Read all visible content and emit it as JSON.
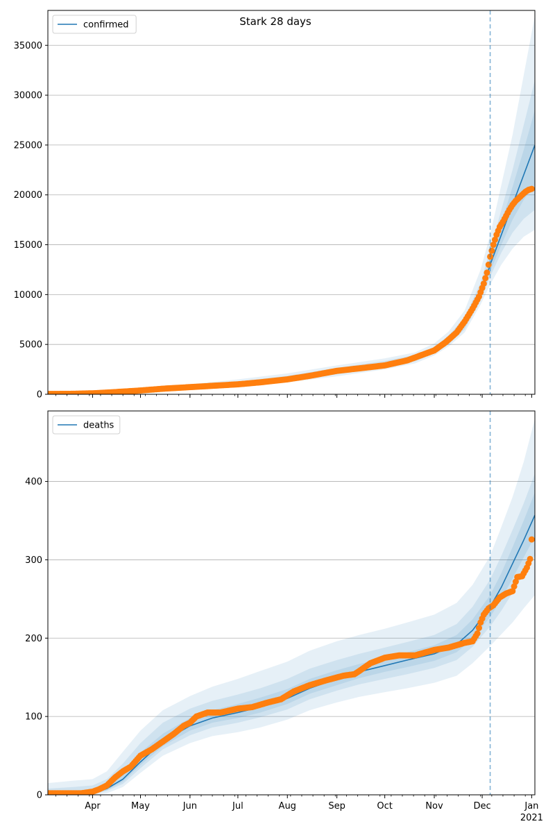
{
  "figure": {
    "title": "Stark 28 days"
  },
  "colors": {
    "model": "#1f77b4",
    "observed": "#ff7f0e",
    "band": "#1f77b4",
    "grid": "#b0b0b0"
  },
  "chart_data": [
    {
      "type": "line",
      "name": "confirmed",
      "legend": "confirmed",
      "legend_position": "upper-left",
      "x_range": [
        "2020-03-04",
        "2021-01-03"
      ],
      "ylim": [
        0,
        38500
      ],
      "yticks": [
        0,
        5000,
        10000,
        15000,
        20000,
        25000,
        30000,
        35000
      ],
      "grid": "horizontal",
      "forecast_start": "2020-12-06",
      "model": {
        "x": [
          "2020-03-04",
          "2020-04-01",
          "2020-05-01",
          "2020-06-01",
          "2020-07-01",
          "2020-08-01",
          "2020-09-01",
          "2020-10-01",
          "2020-10-20",
          "2020-11-01",
          "2020-11-10",
          "2020-11-20",
          "2020-11-30",
          "2020-12-06",
          "2020-12-13",
          "2020-12-20",
          "2020-12-27",
          "2021-01-03"
        ],
        "y": [
          50,
          120,
          350,
          700,
          1050,
          1550,
          2300,
          3000,
          3600,
          4400,
          5400,
          7000,
          10000,
          13000,
          16000,
          19000,
          22000,
          25000
        ],
        "bands": [
          {
            "level": "outer",
            "lower": [
              0,
              40,
              200,
              500,
              800,
              1200,
              1800,
              2500,
              3100,
              3900,
              4800,
              6200,
              9000,
              11000,
              13000,
              14600,
              15800,
              16500
            ],
            "upper": [
              150,
              300,
              600,
              1000,
              1500,
              2100,
              2900,
              3600,
              4200,
              5100,
              6300,
              8400,
              12500,
              16000,
              21000,
              26000,
              32000,
              38000
            ]
          },
          {
            "level": "middle",
            "lower": [
              20,
              70,
              260,
              580,
              900,
              1350,
              2000,
              2700,
              3300,
              4100,
              5000,
              6500,
              9400,
              11800,
              14200,
              16200,
              17600,
              18500
            ],
            "upper": [
              100,
              220,
              480,
              850,
              1280,
              1850,
              2650,
              3350,
              3950,
              4750,
              5900,
              7700,
              11200,
              14500,
              18500,
              22500,
              27000,
              31500
            ]
          },
          {
            "level": "inner",
            "lower": [
              35,
              95,
              300,
              640,
              970,
              1450,
              2150,
              2850,
              3450,
              4250,
              5200,
              6750,
              9700,
              12300,
              15000,
              17500,
              19500,
              21000
            ],
            "upper": [
              75,
              170,
              420,
              780,
              1150,
              1680,
              2480,
              3180,
              3780,
              4580,
              5650,
              7300,
              10500,
              13700,
              17200,
              20800,
              24500,
              28500
            ]
          }
        ]
      },
      "observed": {
        "x": [
          "2020-03-04",
          "2020-03-20",
          "2020-04-01",
          "2020-04-15",
          "2020-05-01",
          "2020-05-15",
          "2020-06-01",
          "2020-06-15",
          "2020-07-01",
          "2020-07-15",
          "2020-08-01",
          "2020-08-15",
          "2020-09-01",
          "2020-09-15",
          "2020-10-01",
          "2020-10-15",
          "2020-11-01",
          "2020-11-08",
          "2020-11-15",
          "2020-11-20",
          "2020-11-25",
          "2020-11-29",
          "2020-12-02",
          "2020-12-04",
          "2020-12-06",
          "2020-12-08",
          "2020-12-10",
          "2020-12-12",
          "2020-12-14",
          "2020-12-16",
          "2020-12-18",
          "2020-12-20",
          "2020-12-22",
          "2020-12-24",
          "2020-12-26",
          "2020-12-28",
          "2020-12-30",
          "2021-01-01"
        ],
        "y": [
          30,
          50,
          100,
          220,
          380,
          560,
          720,
          850,
          1000,
          1200,
          1500,
          1850,
          2350,
          2600,
          2900,
          3400,
          4400,
          5200,
          6200,
          7300,
          8600,
          9800,
          11100,
          12200,
          13800,
          15000,
          16000,
          16800,
          17300,
          17900,
          18500,
          19000,
          19400,
          19700,
          20000,
          20300,
          20500,
          20600
        ]
      }
    },
    {
      "type": "line",
      "name": "deaths",
      "legend": "deaths",
      "legend_position": "upper-left",
      "x_range": [
        "2020-03-04",
        "2021-01-03"
      ],
      "ylim": [
        0,
        490
      ],
      "yticks": [
        0,
        100,
        200,
        300,
        400
      ],
      "grid": "horizontal",
      "forecast_start": "2020-12-06",
      "xtick_labels": [
        "Apr",
        "May",
        "Jun",
        "Jul",
        "Aug",
        "Sep",
        "Oct",
        "Nov",
        "Dec",
        "Jan"
      ],
      "xtick_year": "2021",
      "model": {
        "x": [
          "2020-03-04",
          "2020-03-20",
          "2020-04-01",
          "2020-04-10",
          "2020-04-20",
          "2020-05-01",
          "2020-05-15",
          "2020-06-01",
          "2020-06-15",
          "2020-07-01",
          "2020-07-15",
          "2020-08-01",
          "2020-08-15",
          "2020-09-01",
          "2020-09-15",
          "2020-10-01",
          "2020-10-15",
          "2020-11-01",
          "2020-11-15",
          "2020-11-25",
          "2020-12-06",
          "2020-12-13",
          "2020-12-20",
          "2020-12-27",
          "2021-01-03"
        ],
        "y": [
          0,
          0,
          2,
          8,
          20,
          42,
          68,
          88,
          98,
          105,
          112,
          123,
          136,
          148,
          157,
          165,
          172,
          180,
          192,
          210,
          240,
          265,
          295,
          325,
          357
        ],
        "bands": [
          {
            "level": "outer",
            "lower": [
              0,
              0,
              0,
              2,
              10,
              28,
              50,
              66,
              75,
              80,
              86,
              96,
              108,
              118,
              125,
              131,
              136,
              143,
              152,
              168,
              190,
              205,
              220,
              238,
              255
            ],
            "upper": [
              15,
              18,
              20,
              30,
              55,
              82,
              108,
              126,
              138,
              148,
              158,
              170,
              184,
              196,
              204,
              212,
              220,
              230,
              245,
              268,
              305,
              342,
              380,
              425,
              480
            ]
          },
          {
            "level": "middle",
            "lower": [
              0,
              0,
              1,
              5,
              14,
              34,
              58,
              76,
              86,
              92,
              99,
              109,
              122,
              133,
              141,
              148,
              154,
              162,
              172,
              189,
              215,
              235,
              258,
              282,
              306
            ],
            "upper": [
              8,
              10,
              12,
              20,
              40,
              66,
              92,
              110,
              120,
              128,
              136,
              148,
              161,
              172,
              180,
              188,
              195,
              204,
              218,
              240,
              275,
              305,
              338,
              372,
              410
            ]
          },
          {
            "level": "inner",
            "lower": [
              0,
              0,
              1,
              6,
              17,
              38,
              62,
              82,
              92,
              98,
              105,
              116,
              129,
              140,
              149,
              157,
              163,
              171,
              182,
              199,
              227,
              250,
              276,
              303,
              330
            ],
            "upper": [
              4,
              5,
              6,
              13,
              30,
              54,
              78,
              98,
              108,
              116,
              124,
              135,
              148,
              159,
              167,
              175,
              182,
              191,
              204,
              224,
              255,
              283,
              316,
              350,
              386
            ]
          }
        ]
      },
      "observed": {
        "x": [
          "2020-03-04",
          "2020-03-15",
          "2020-03-25",
          "2020-04-01",
          "2020-04-05",
          "2020-04-10",
          "2020-04-15",
          "2020-04-20",
          "2020-04-25",
          "2020-05-01",
          "2020-05-08",
          "2020-05-15",
          "2020-05-22",
          "2020-05-28",
          "2020-06-01",
          "2020-06-05",
          "2020-06-12",
          "2020-06-20",
          "2020-07-01",
          "2020-07-10",
          "2020-07-20",
          "2020-07-28",
          "2020-08-05",
          "2020-08-15",
          "2020-08-25",
          "2020-09-05",
          "2020-09-12",
          "2020-09-15",
          "2020-09-22",
          "2020-10-01",
          "2020-10-10",
          "2020-10-20",
          "2020-11-01",
          "2020-11-10",
          "2020-11-20",
          "2020-11-25",
          "2020-11-28",
          "2020-11-30",
          "2020-12-02",
          "2020-12-05",
          "2020-12-08",
          "2020-12-12",
          "2020-12-16",
          "2020-12-20",
          "2020-12-23",
          "2020-12-26",
          "2020-12-29",
          "2020-12-31",
          "2021-01-01"
        ],
        "y": [
          2,
          2,
          2,
          4,
          7,
          12,
          22,
          30,
          36,
          50,
          58,
          68,
          78,
          88,
          92,
          100,
          105,
          105,
          110,
          112,
          118,
          122,
          132,
          140,
          146,
          152,
          154,
          158,
          168,
          175,
          178,
          178,
          185,
          188,
          194,
          196,
          206,
          220,
          230,
          238,
          242,
          252,
          257,
          260,
          278,
          279,
          290,
          301,
          326
        ]
      }
    }
  ]
}
